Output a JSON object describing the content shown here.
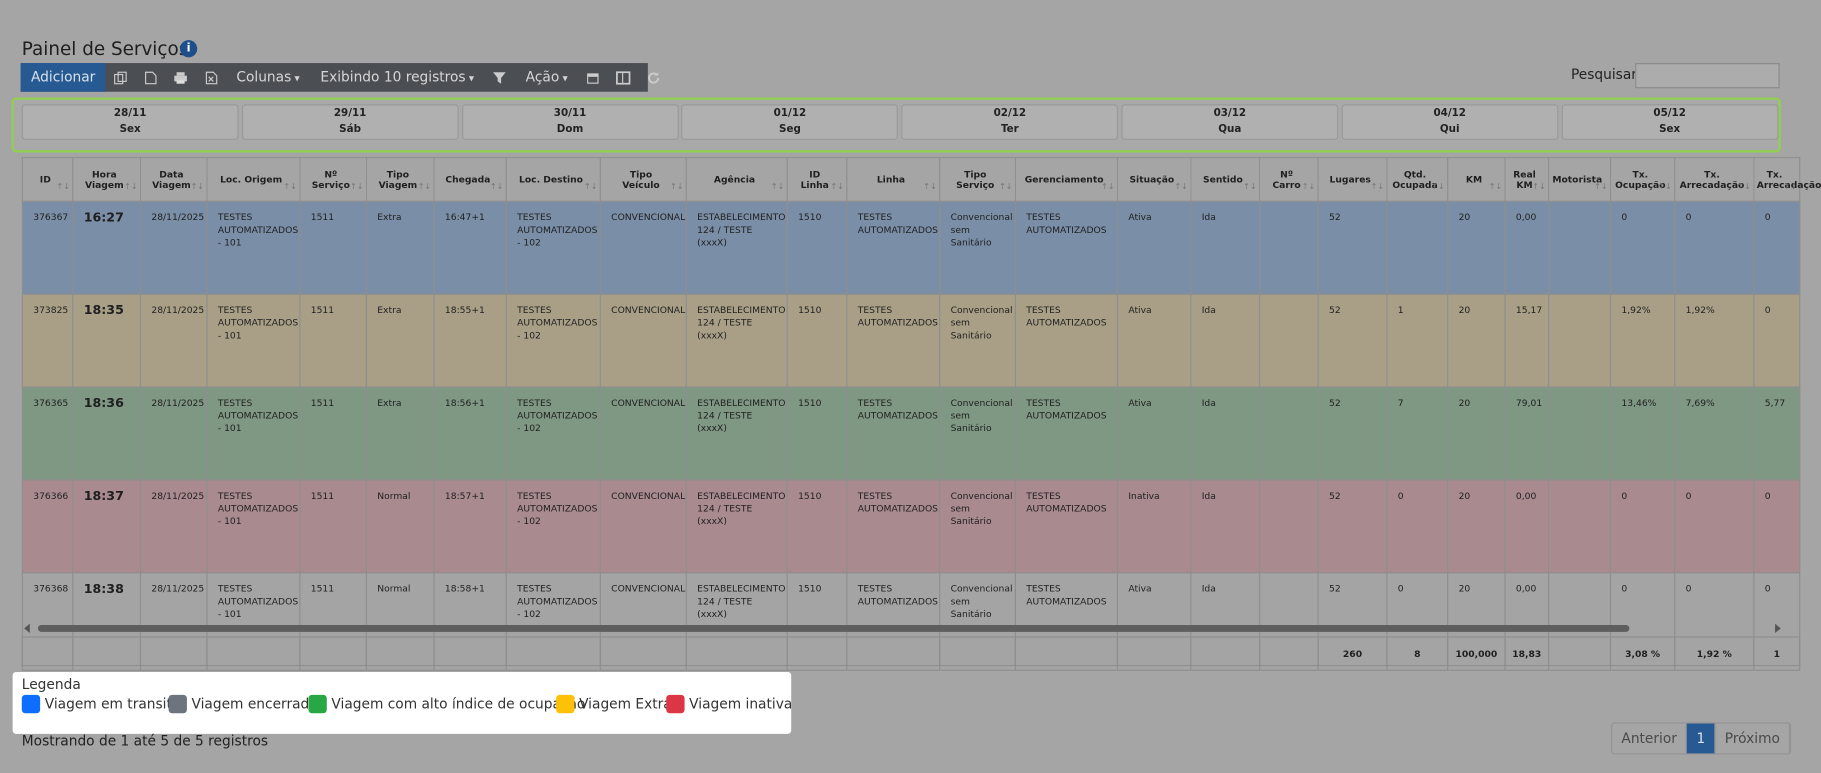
{
  "header": {
    "title": "Painel de Serviços",
    "toolbar": {
      "add": "Adicionar",
      "columns": "Colunas",
      "showing": "Exibindo 10 registros",
      "action": "Ação"
    },
    "search_label": "Pesquisar"
  },
  "dates": [
    {
      "date": "28/11",
      "day": "Sex"
    },
    {
      "date": "29/11",
      "day": "Sáb"
    },
    {
      "date": "30/11",
      "day": "Dom"
    },
    {
      "date": "01/12",
      "day": "Seg"
    },
    {
      "date": "02/12",
      "day": "Ter"
    },
    {
      "date": "03/12",
      "day": "Qua"
    },
    {
      "date": "04/12",
      "day": "Qui"
    },
    {
      "date": "05/12",
      "day": "Sex"
    }
  ],
  "table": {
    "columns": [
      "ID",
      "Hora\nViagem",
      "Data\nViagem",
      "Loc. Origem",
      "Nº\nServiço",
      "Tipo\nViagem",
      "Chegada",
      "Loc. Destino",
      "Tipo\nVeículo",
      "Agência",
      "ID\nLinha",
      "Linha",
      "Tipo\nServiço",
      "Gerenciamento",
      "Situação",
      "Sentido",
      "Nº\nCarro",
      "Lugares",
      "Qtd.\nOcupada",
      "KM",
      "Real\nKM",
      "Motorista",
      "Tx.\nOcupação",
      "Tx.\nArrecadação",
      "Tx.\nArrecadação"
    ],
    "rows": [
      {
        "color": "#7a8ea7",
        "cells": [
          "376367",
          "16:27",
          "28/11/2025",
          "TESTES AUTOMATIZADOS - 101",
          "1511",
          "Extra",
          "16:47+1",
          "TESTES AUTOMATIZADOS - 102",
          "CONVENCIONAL",
          "ESTABELECIMENTO 124 / TESTE (xxxX)",
          "1510",
          "TESTES AUTOMATIZADOS",
          "Convencional sem Sanitário",
          "TESTES AUTOMATIZADOS",
          "Ativa",
          "Ida",
          null,
          "52",
          null,
          "20",
          "0,00",
          null,
          "0",
          "0",
          "0"
        ]
      },
      {
        "color": "#a89f86",
        "cells": [
          "373825",
          "18:35",
          "28/11/2025",
          "TESTES AUTOMATIZADOS - 101",
          "1511",
          "Extra",
          "18:55+1",
          "TESTES AUTOMATIZADOS - 102",
          "CONVENCIONAL",
          "ESTABELECIMENTO 124 / TESTE (xxxX)",
          "1510",
          "TESTES AUTOMATIZADOS",
          "Convencional sem Sanitário",
          "TESTES AUTOMATIZADOS",
          "Ativa",
          "Ida",
          null,
          "52",
          "1",
          "20",
          "15,17",
          null,
          "1,92%",
          "1,92%",
          "0"
        ]
      },
      {
        "color": "#7f9883",
        "cells": [
          "376365",
          "18:36",
          "28/11/2025",
          "TESTES AUTOMATIZADOS - 101",
          "1511",
          "Extra",
          "18:56+1",
          "TESTES AUTOMATIZADOS - 102",
          "CONVENCIONAL",
          "ESTABELECIMENTO 124 / TESTE (xxxX)",
          "1510",
          "TESTES AUTOMATIZADOS",
          "Convencional sem Sanitário",
          "TESTES AUTOMATIZADOS",
          "Ativa",
          "Ida",
          null,
          "52",
          "7",
          "20",
          "79,01",
          null,
          "13,46%",
          "7,69%",
          "5,77"
        ]
      },
      {
        "color": "#a98a8f",
        "cells": [
          "376366",
          "18:37",
          "28/11/2025",
          "TESTES AUTOMATIZADOS - 101",
          "1511",
          "Normal",
          "18:57+1",
          "TESTES AUTOMATIZADOS - 102",
          "CONVENCIONAL",
          "ESTABELECIMENTO 124 / TESTE (xxxX)",
          "1510",
          "TESTES AUTOMATIZADOS",
          "Convencional sem Sanitário",
          "TESTES AUTOMATIZADOS",
          "Inativa",
          "Ida",
          null,
          "52",
          "0",
          "20",
          "0,00",
          null,
          "0",
          "0",
          "0"
        ]
      },
      {
        "color": "#a4a4a4",
        "cells": [
          "376368",
          "18:38",
          "28/11/2025",
          "TESTES AUTOMATIZADOS - 101",
          "1511",
          "Normal",
          "18:58+1",
          "TESTES AUTOMATIZADOS - 102",
          "CONVENCIONAL",
          "ESTABELECIMENTO 124 / TESTE (xxxX)",
          "1510",
          "TESTES AUTOMATIZADOS",
          "Convencional sem Sanitário",
          "TESTES AUTOMATIZADOS",
          "Ativa",
          "Ida",
          null,
          "52",
          "0",
          "20",
          "0,00",
          null,
          "0",
          "0",
          "0"
        ]
      }
    ],
    "footer": [
      null,
      null,
      null,
      null,
      null,
      null,
      null,
      null,
      null,
      null,
      null,
      null,
      null,
      null,
      null,
      null,
      null,
      "260",
      "8",
      "100,000",
      "18,83",
      null,
      "3,08 %",
      "1,92 %",
      "1"
    ]
  },
  "legend": {
    "title": "Legenda",
    "items": [
      {
        "label": "Viagem em transito",
        "color": "#0d6efd"
      },
      {
        "label": "Viagem encerrada",
        "color": "#6c757d"
      },
      {
        "label": "Viagem com alto índice de ocupação",
        "color": "#28a745"
      },
      {
        "label": "Viagem Extra",
        "color": "#ffc107"
      },
      {
        "label": "Viagem inativa",
        "color": "#dc3545"
      }
    ]
  },
  "info": "Mostrando de 1 até 5 de 5 registros",
  "pagination": [
    "Anterior",
    "1",
    "Próximo"
  ]
}
